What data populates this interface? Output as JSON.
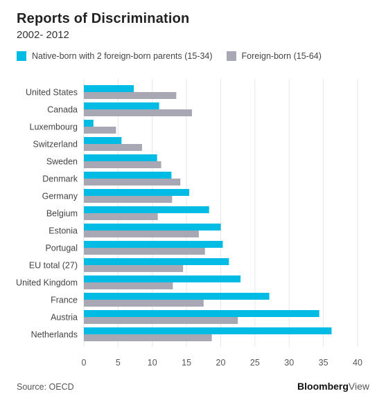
{
  "header": {
    "title": "Reports of Discrimination",
    "subtitle": "2002- 2012"
  },
  "footer": {
    "source": "Source: OECD",
    "brand_main": "Bloomberg",
    "brand_sub": "View"
  },
  "colors": {
    "native_born": "#00bce4",
    "foreign_born": "#a8a8b4",
    "grid": "#e6e6e6"
  },
  "chart_data": {
    "type": "bar",
    "orientation": "horizontal",
    "title": "Reports of Discrimination",
    "subtitle": "2002- 2012",
    "xlabel": "",
    "ylabel": "",
    "xlim": [
      0,
      40
    ],
    "x_ticks": [
      0,
      5,
      10,
      15,
      20,
      25,
      30,
      35,
      40
    ],
    "grid": true,
    "legend_position": "top-left",
    "categories": [
      "United States",
      "Canada",
      "Luxembourg",
      "Switzerland",
      "Sweden",
      "Denmark",
      "Germany",
      "Belgium",
      "Estonia",
      "Portugal",
      "EU total (27)",
      "United Kingdom",
      "France",
      "Austria",
      "Netherlands"
    ],
    "series": [
      {
        "name": "Native-born with 2 foreign-born parents (15-34)",
        "color": "#00bce4",
        "values": [
          7.3,
          11.0,
          1.4,
          5.5,
          10.7,
          12.8,
          15.4,
          18.3,
          20.0,
          20.3,
          21.2,
          22.9,
          27.1,
          34.4,
          36.2
        ]
      },
      {
        "name": "Foreign-born (15-64)",
        "color": "#a8a8b4",
        "values": [
          13.5,
          15.8,
          4.7,
          8.5,
          11.3,
          14.1,
          12.9,
          10.8,
          16.8,
          17.7,
          14.5,
          13.0,
          17.5,
          22.5,
          18.7
        ]
      }
    ]
  }
}
